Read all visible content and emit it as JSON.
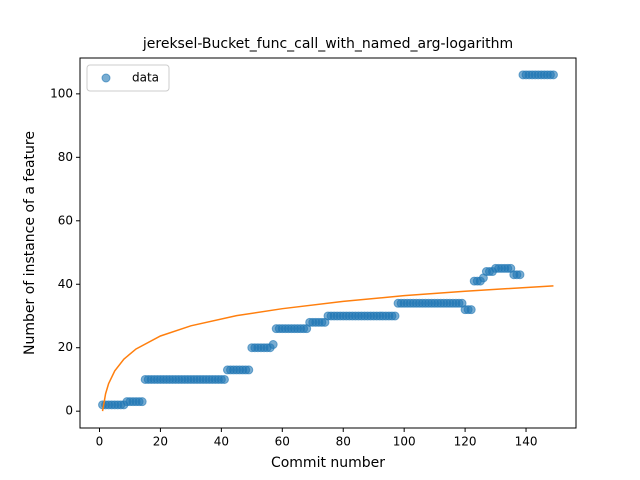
{
  "chart_data": {
    "type": "scatter",
    "title": "jereksel-Bucket_func_call_with_named_arg-logarithm",
    "x_label": "Commit number",
    "y_label": "Number of instance of a feature",
    "xlim": [
      -6.4,
      156.4
    ],
    "ylim": [
      -5.3,
      111.3
    ],
    "xticks": [
      0,
      20,
      40,
      60,
      80,
      100,
      120,
      140
    ],
    "yticks": [
      0,
      20,
      40,
      60,
      80,
      100
    ],
    "legend": "upper left",
    "series": [
      {
        "name": "data",
        "type": "scatter",
        "color": "#1f77b4",
        "x": [
          1,
          2,
          3,
          4,
          5,
          6,
          7,
          8,
          9,
          10,
          11,
          12,
          13,
          14,
          15,
          16,
          17,
          18,
          19,
          20,
          21,
          22,
          23,
          24,
          25,
          26,
          27,
          28,
          29,
          30,
          31,
          32,
          33,
          34,
          35,
          36,
          37,
          38,
          39,
          40,
          41,
          42,
          43,
          44,
          45,
          46,
          47,
          48,
          49,
          50,
          51,
          52,
          53,
          54,
          55,
          56,
          57,
          58,
          59,
          60,
          61,
          62,
          63,
          64,
          65,
          66,
          67,
          68,
          69,
          70,
          71,
          72,
          73,
          74,
          75,
          76,
          77,
          78,
          79,
          80,
          81,
          82,
          83,
          84,
          85,
          86,
          87,
          88,
          89,
          90,
          91,
          92,
          93,
          94,
          95,
          96,
          97,
          98,
          99,
          100,
          101,
          102,
          103,
          104,
          105,
          106,
          107,
          108,
          109,
          110,
          111,
          112,
          113,
          114,
          115,
          116,
          117,
          118,
          119,
          120,
          121,
          122,
          123,
          124,
          125,
          126,
          127,
          128,
          129,
          130,
          131,
          132,
          133,
          134,
          135,
          136,
          137,
          138,
          139,
          140,
          141,
          142,
          143,
          144,
          145,
          146,
          147,
          148,
          149
        ],
        "values": [
          2,
          2,
          2,
          2,
          2,
          2,
          2,
          2,
          3,
          3,
          3,
          3,
          3,
          3,
          10,
          10,
          10,
          10,
          10,
          10,
          10,
          10,
          10,
          10,
          10,
          10,
          10,
          10,
          10,
          10,
          10,
          10,
          10,
          10,
          10,
          10,
          10,
          10,
          10,
          10,
          10,
          13,
          13,
          13,
          13,
          13,
          13,
          13,
          13,
          20,
          20,
          20,
          20,
          20,
          20,
          20,
          21,
          26,
          26,
          26,
          26,
          26,
          26,
          26,
          26,
          26,
          26,
          26,
          28,
          28,
          28,
          28,
          28,
          28,
          30,
          30,
          30,
          30,
          30,
          30,
          30,
          30,
          30,
          30,
          30,
          30,
          30,
          30,
          30,
          30,
          30,
          30,
          30,
          30,
          30,
          30,
          30,
          34,
          34,
          34,
          34,
          34,
          34,
          34,
          34,
          34,
          34,
          34,
          34,
          34,
          34,
          34,
          34,
          34,
          34,
          34,
          34,
          34,
          34,
          32,
          32,
          32,
          41,
          41,
          41,
          42,
          44,
          44,
          44,
          45,
          45,
          45,
          45,
          45,
          45,
          43,
          43,
          43,
          106,
          106,
          106,
          106,
          106,
          106,
          106,
          106,
          106,
          106,
          106
        ]
      },
      {
        "type": "line",
        "color": "#ff7f0e",
        "x": [
          1,
          2,
          3,
          5,
          8,
          12,
          20,
          30,
          45,
          60,
          80,
          100,
          120,
          149
        ],
        "values": [
          0,
          5.5,
          8.7,
          12.7,
          16.4,
          19.6,
          23.7,
          26.9,
          30.1,
          32.3,
          34.6,
          36.4,
          37.8,
          39.5
        ]
      }
    ]
  }
}
